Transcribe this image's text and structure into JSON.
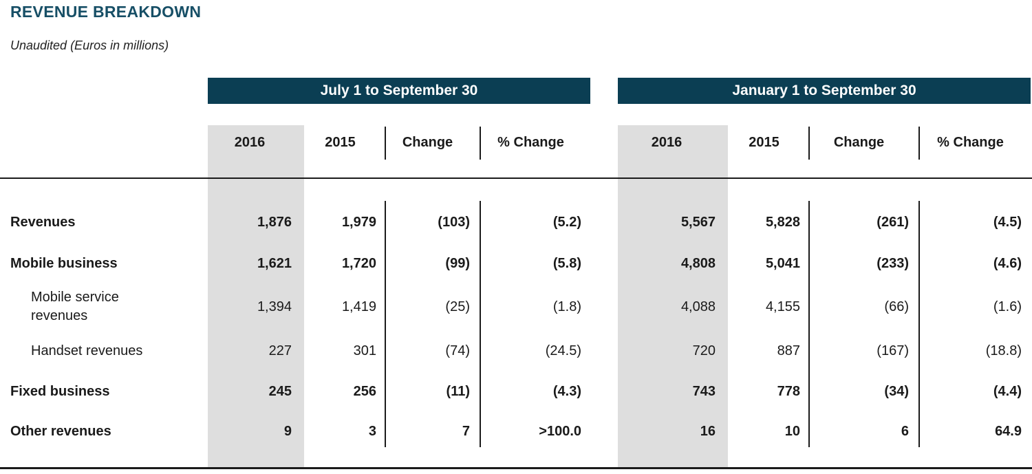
{
  "title": "REVENUE BREAKDOWN",
  "subtitle": "Unaudited (Euros in millions)",
  "colors": {
    "accent_bar": "#0b3e53",
    "title_text": "#174f66",
    "band_gray": "#dedede",
    "text": "#1a1a1a"
  },
  "period_groups": [
    {
      "label": "July 1 to September 30"
    },
    {
      "label": "January 1 to September 30"
    }
  ],
  "column_headers": [
    "2016",
    "2015",
    "Change",
    "% Change"
  ],
  "rows": [
    {
      "label": "Revenues",
      "bold": true,
      "indent": false,
      "values": [
        "1,876",
        "1,979",
        "(103)",
        "(5.2)",
        "5,567",
        "5,828",
        "(261)",
        "(4.5)"
      ]
    },
    {
      "label": "Mobile business",
      "bold": true,
      "indent": false,
      "values": [
        "1,621",
        "1,720",
        "(99)",
        "(5.8)",
        "4,808",
        "5,041",
        "(233)",
        "(4.6)"
      ]
    },
    {
      "label": "Mobile service revenues",
      "bold": false,
      "indent": true,
      "values": [
        "1,394",
        "1,419",
        "(25)",
        "(1.8)",
        "4,088",
        "4,155",
        "(66)",
        "(1.6)"
      ]
    },
    {
      "label": "Handset revenues",
      "bold": false,
      "indent": true,
      "values": [
        "227",
        "301",
        "(74)",
        "(24.5)",
        "720",
        "887",
        "(167)",
        "(18.8)"
      ]
    },
    {
      "label": "Fixed business",
      "bold": true,
      "indent": false,
      "values": [
        "245",
        "256",
        "(11)",
        "(4.3)",
        "743",
        "778",
        "(34)",
        "(4.4)"
      ]
    },
    {
      "label": "Other revenues",
      "bold": true,
      "indent": false,
      "values": [
        "9",
        "3",
        "7",
        ">100.0",
        "16",
        "10",
        "6",
        "64.9"
      ]
    }
  ]
}
